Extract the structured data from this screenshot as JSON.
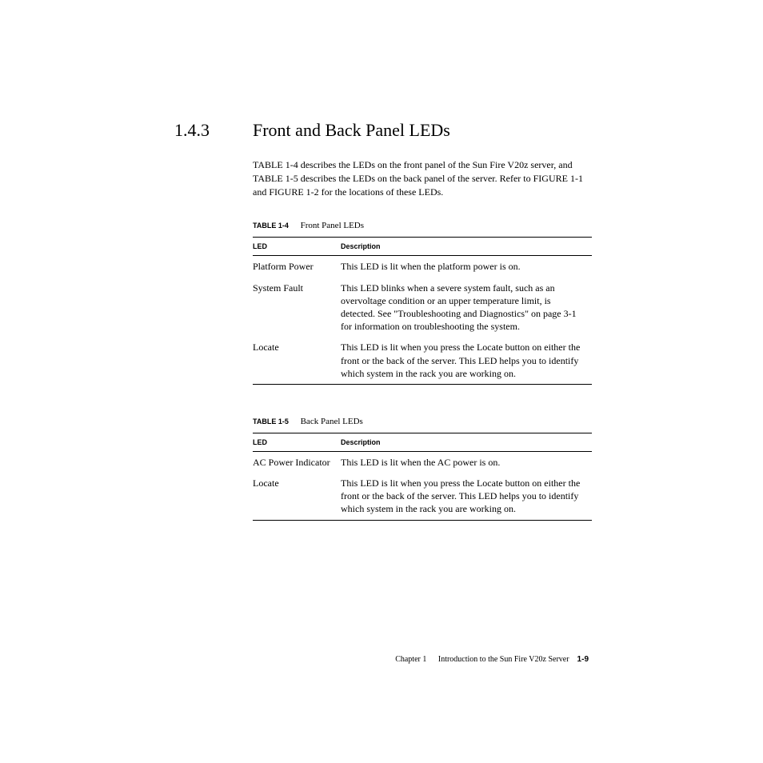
{
  "section": {
    "number": "1.4.3",
    "title": "Front and Back Panel LEDs"
  },
  "intro": {
    "ref1": "TABLE 1-4",
    "text1": " describes the LEDs on the front panel of the Sun Fire V20z server, and ",
    "ref2": "TABLE 1-5",
    "text2": " describes the LEDs on the back panel of the server. Refer to ",
    "ref3": "FIGURE 1-1",
    "text3": " and ",
    "ref4": "FIGURE 1-2",
    "text4": " for the locations of these LEDs."
  },
  "table1": {
    "caption_label": "TABLE 1-4",
    "caption_text": "Front Panel LEDs",
    "headers": {
      "col1": "LED",
      "col2": "Description"
    },
    "rows": [
      {
        "led": "Platform Power",
        "desc": "This LED is lit when the platform power is on."
      },
      {
        "led": "System Fault",
        "desc": "This LED blinks when a severe system fault, such as an overvoltage condition or an upper temperature limit, is detected. See \"Troubleshooting and Diagnostics\" on page 3-1 for information on troubleshooting the system."
      },
      {
        "led": "Locate",
        "desc": "This LED is lit when you press the Locate button on either the front or the back of the server. This LED helps you to identify which system in the rack you are working on."
      }
    ]
  },
  "table2": {
    "caption_label": "TABLE 1-5",
    "caption_text": "Back Panel LEDs",
    "headers": {
      "col1": "LED",
      "col2": "Description"
    },
    "rows": [
      {
        "led": "AC Power Indicator",
        "desc": "This LED is lit when the AC power is on."
      },
      {
        "led": "Locate",
        "desc": "This LED is lit when you press the Locate button on either the front or the back of the server. This LED helps you to identify which system in the rack you are working on."
      }
    ]
  },
  "footer": {
    "chapter": "Chapter 1",
    "title": "Introduction to the Sun Fire V20z Server",
    "page": "1-9"
  }
}
